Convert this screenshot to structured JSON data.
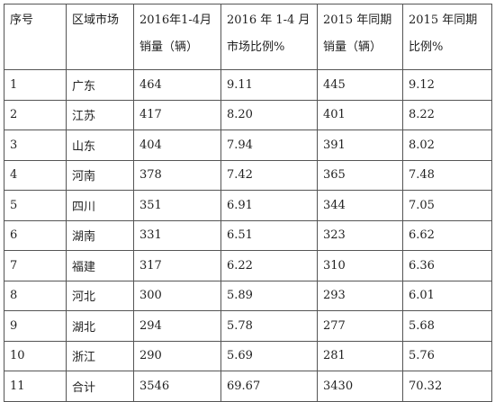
{
  "table": {
    "header": [
      [
        "序号"
      ],
      [
        "区域市场"
      ],
      [
        "2016年1-4月",
        "销量（辆）"
      ],
      [
        "2016 年 1-4 月",
        "市场比例%"
      ],
      [
        "2015 年同期",
        "销量（辆）"
      ],
      [
        "2015 年同期",
        "比例%"
      ]
    ],
    "rows": [
      [
        "1",
        "广东",
        "464",
        "9.11",
        "445",
        "9.12"
      ],
      [
        "2",
        "江苏",
        "417",
        "8.20",
        "401",
        "8.22"
      ],
      [
        "3",
        "山东",
        "404",
        "7.94",
        "391",
        "8.02"
      ],
      [
        "4",
        "河南",
        "378",
        "7.42",
        "365",
        "7.48"
      ],
      [
        "5",
        "四川",
        "351",
        "6.91",
        "344",
        "7.05"
      ],
      [
        "6",
        "湖南",
        "331",
        "6.51",
        "323",
        "6.62"
      ],
      [
        "7",
        "福建",
        "317",
        "6.22",
        "310",
        "6.36"
      ],
      [
        "8",
        "河北",
        "300",
        "5.89",
        "293",
        "6.01"
      ],
      [
        "9",
        "湖北",
        "294",
        "5.78",
        "277",
        "5.68"
      ],
      [
        "10",
        "浙江",
        "290",
        "5.69",
        "281",
        "5.76"
      ],
      [
        "11",
        "合计",
        "3546",
        "69.67",
        "3430",
        "70.32"
      ]
    ]
  }
}
